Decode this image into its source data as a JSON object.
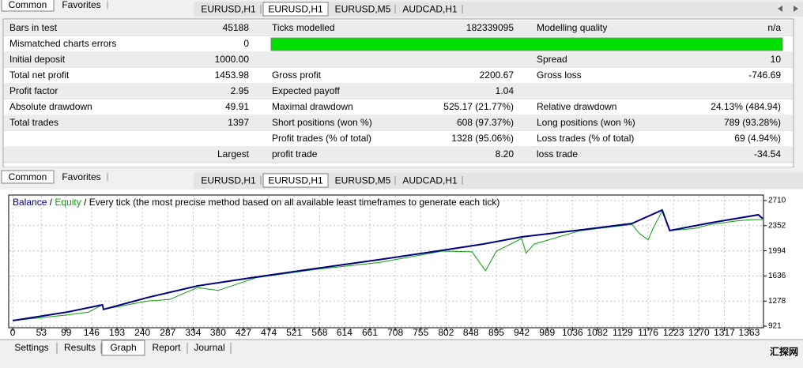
{
  "upper_panel": {
    "side_tabs": [
      "Common",
      "Favorites"
    ],
    "chart_tabs": [
      "EURUSD,H1",
      "EURUSD,H1",
      "EURUSD,M5",
      "AUDCAD,H1"
    ]
  },
  "report": {
    "rows": [
      {
        "label1": "Bars in test",
        "value1": "45188",
        "label2": "Ticks modelled",
        "value2": "182339095",
        "label3": "Modelling quality",
        "value3": "n/a"
      },
      {
        "label1": "Mismatched charts errors",
        "value1": "0"
      },
      {
        "label1": "Initial deposit",
        "value1": "1000.00",
        "label3": "Spread",
        "value3": "10"
      },
      {
        "label1": "Total net profit",
        "value1": "1453.98",
        "label2": "Gross profit",
        "value2": "2200.67",
        "label3": "Gross loss",
        "value3": "-746.69"
      },
      {
        "label1": "Profit factor",
        "value1": "2.95",
        "label2": "Expected payoff",
        "value2": "1.04"
      },
      {
        "label1": "Absolute drawdown",
        "value1": "49.91",
        "label2": "Maximal drawdown",
        "value2": "525.17 (21.77%)",
        "label3": "Relative drawdown",
        "value3": "24.13% (484.94)"
      },
      {
        "label1": "Total trades",
        "value1": "1397",
        "label2": "Short positions (won %)",
        "value2": "608 (97.37%)",
        "label3": "Long positions (won %)",
        "value3": "789 (93.28%)"
      },
      {
        "label2": "Profit trades (% of total)",
        "value2": "1328 (95.06%)",
        "label3": "Loss trades (% of total)",
        "value3": "69 (4.94%)"
      },
      {
        "value1": "Largest",
        "label2": "profit trade",
        "value2": "8.20",
        "label3": "loss trade",
        "value3": "-34.54"
      }
    ]
  },
  "lower_panel": {
    "side_tabs": [
      "Common",
      "Favorites"
    ],
    "chart_tabs": [
      "EURUSD,H1",
      "EURUSD,H1",
      "EURUSD,M5",
      "AUDCAD,H1"
    ]
  },
  "chart_data": {
    "type": "line",
    "legend_separator": "/",
    "legend_note": "Every tick (the most precise method based on all available least timeframes to generate each tick)",
    "series": [
      {
        "name": "Equity",
        "color": "#10a010",
        "x": [
          0,
          100,
          140,
          166,
          168,
          250,
          290,
          342,
          380,
          450,
          561,
          680,
          795,
          850,
          875,
          895,
          942,
          950,
          965,
          1050,
          1146,
          1160,
          1176,
          1185,
          1202,
          1216,
          1260,
          1292,
          1340,
          1370,
          1388
        ],
        "values": [
          1000,
          1080,
          1120,
          1225,
          1160,
          1280,
          1300,
          1470,
          1430,
          1610,
          1730,
          1830,
          1990,
          1980,
          1710,
          1990,
          2170,
          1960,
          2090,
          2280,
          2370,
          2240,
          2150,
          2310,
          2560,
          2282,
          2310,
          2370,
          2420,
          2440,
          2440
        ]
      },
      {
        "name": "Balance",
        "color": "#000080",
        "x": [
          0,
          100,
          166,
          168,
          250,
          342,
          450,
          561,
          680,
          795,
          870,
          942,
          1050,
          1146,
          1202,
          1216,
          1292,
          1380,
          1388
        ],
        "values": [
          1000,
          1120,
          1225,
          1160,
          1330,
          1495,
          1620,
          1742,
          1870,
          2001,
          2090,
          2192,
          2290,
          2383,
          2575,
          2282,
          2394,
          2507,
          2454
        ]
      }
    ],
    "xlim": [
      -6,
      1388
    ],
    "ylim": [
      910,
      2777
    ],
    "xticks": [
      0,
      53,
      99,
      146,
      193,
      240,
      287,
      334,
      380,
      427,
      474,
      521,
      568,
      614,
      661,
      708,
      755,
      802,
      848,
      895,
      942,
      989,
      1036,
      1082,
      1129,
      1176,
      1223,
      1270,
      1317,
      1363
    ],
    "yticks": [
      921,
      1278,
      1636,
      1994,
      2352,
      2710
    ],
    "grid": true
  },
  "bottom_tabs": [
    "Settings",
    "Results",
    "Graph",
    "Report",
    "Journal"
  ],
  "watermark": "汇探网"
}
